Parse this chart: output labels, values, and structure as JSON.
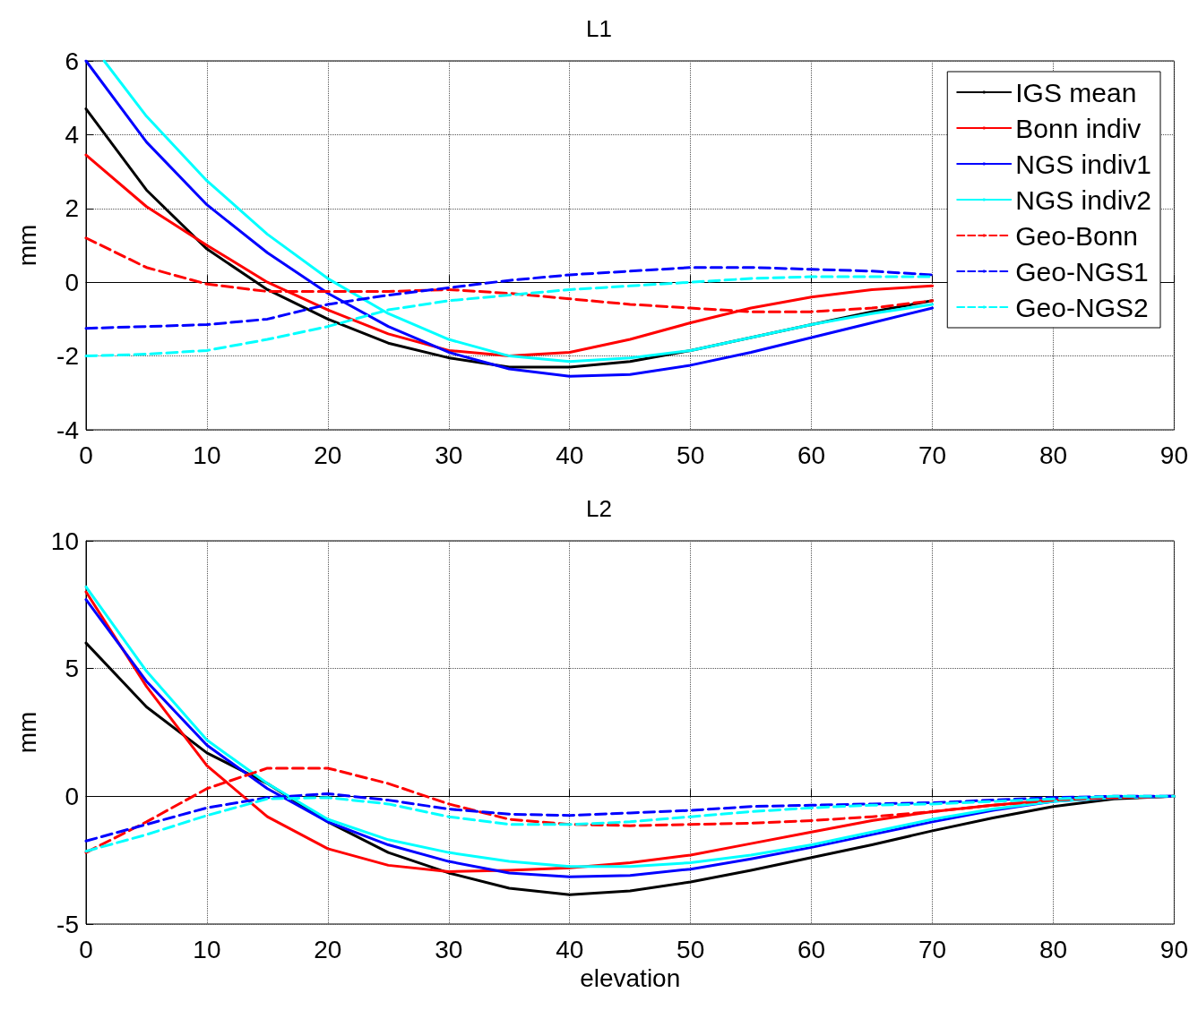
{
  "chart_data": [
    {
      "type": "line",
      "title": "L1",
      "ylabel": "mm",
      "x": [
        0,
        5,
        10,
        15,
        20,
        25,
        30,
        35,
        40,
        45,
        50,
        55,
        60,
        65,
        70
      ],
      "xlim": [
        0,
        90
      ],
      "xticks": [
        0,
        10,
        20,
        30,
        40,
        50,
        60,
        70,
        80,
        90
      ],
      "ylim": [
        -4,
        6
      ],
      "yticks": [
        -4,
        -2,
        0,
        2,
        4,
        6
      ],
      "grid": true,
      "legend": "top right",
      "marker": "none",
      "series": [
        {
          "name": "IGS mean",
          "color": "#000000",
          "line_style": "solid",
          "values": [
            4.7,
            2.5,
            0.9,
            -0.2,
            -1.0,
            -1.65,
            -2.05,
            -2.3,
            -2.3,
            -2.15,
            -1.85,
            -1.5,
            -1.15,
            -0.8,
            -0.5
          ]
        },
        {
          "name": "Bonn indiv",
          "color": "#ff0000",
          "line_style": "solid",
          "values": [
            3.45,
            2.05,
            1.0,
            0.0,
            -0.75,
            -1.4,
            -1.85,
            -2.0,
            -1.9,
            -1.55,
            -1.1,
            -0.7,
            -0.4,
            -0.2,
            -0.1
          ]
        },
        {
          "name": "NGS indiv1",
          "color": "#0000ff",
          "line_style": "solid",
          "values": [
            6.0,
            3.8,
            2.1,
            0.8,
            -0.3,
            -1.2,
            -1.9,
            -2.35,
            -2.55,
            -2.5,
            -2.25,
            -1.9,
            -1.5,
            -1.1,
            -0.7
          ]
        },
        {
          "name": "NGS indiv2",
          "color": "#00ffff",
          "line_style": "solid",
          "x": [
            1.5,
            5,
            10,
            15,
            20,
            25,
            30,
            35,
            40,
            45,
            50,
            55,
            60,
            65,
            70
          ],
          "values": [
            6.0,
            4.5,
            2.75,
            1.3,
            0.1,
            -0.85,
            -1.55,
            -2.0,
            -2.15,
            -2.05,
            -1.85,
            -1.5,
            -1.15,
            -0.85,
            -0.6
          ]
        },
        {
          "name": "Geo-Bonn",
          "color": "#ff0000",
          "line_style": "dashed",
          "values": [
            1.2,
            0.4,
            -0.05,
            -0.25,
            -0.25,
            -0.25,
            -0.2,
            -0.3,
            -0.45,
            -0.6,
            -0.7,
            -0.8,
            -0.8,
            -0.7,
            -0.5
          ]
        },
        {
          "name": "Geo-NGS1",
          "color": "#0000ff",
          "line_style": "dashed",
          "values": [
            -1.25,
            -1.2,
            -1.15,
            -1.0,
            -0.6,
            -0.35,
            -0.15,
            0.05,
            0.2,
            0.3,
            0.4,
            0.4,
            0.35,
            0.3,
            0.2
          ]
        },
        {
          "name": "Geo-NGS2",
          "color": "#00ffff",
          "line_style": "dashed",
          "values": [
            -2.0,
            -1.95,
            -1.85,
            -1.55,
            -1.2,
            -0.75,
            -0.5,
            -0.35,
            -0.2,
            -0.1,
            0.0,
            0.1,
            0.15,
            0.15,
            0.15
          ]
        }
      ]
    },
    {
      "type": "line",
      "title": "L2",
      "xlabel": "elevation",
      "ylabel": "mm",
      "x": [
        0,
        5,
        10,
        15,
        20,
        25,
        30,
        35,
        40,
        45,
        50,
        55,
        60,
        65,
        70,
        75,
        80,
        85,
        90
      ],
      "xlim": [
        0,
        90
      ],
      "xticks": [
        0,
        10,
        20,
        30,
        40,
        50,
        60,
        70,
        80,
        90
      ],
      "ylim": [
        -5,
        10
      ],
      "yticks": [
        -5,
        0,
        5,
        10
      ],
      "grid": true,
      "marker": "none",
      "series": [
        {
          "color": "#000000",
          "line_style": "solid",
          "values": [
            6.0,
            3.5,
            1.7,
            0.5,
            -1.0,
            -2.2,
            -3.0,
            -3.6,
            -3.85,
            -3.7,
            -3.35,
            -2.9,
            -2.4,
            -1.9,
            -1.35,
            -0.85,
            -0.4,
            -0.1,
            0
          ]
        },
        {
          "color": "#ff0000",
          "line_style": "solid",
          "values": [
            8.0,
            4.3,
            1.2,
            -0.8,
            -2.05,
            -2.7,
            -2.95,
            -2.9,
            -2.8,
            -2.6,
            -2.3,
            -1.85,
            -1.4,
            -0.95,
            -0.6,
            -0.35,
            -0.15,
            -0.05,
            0
          ]
        },
        {
          "color": "#0000ff",
          "line_style": "solid",
          "values": [
            7.7,
            4.5,
            2.0,
            0.3,
            -1.0,
            -1.9,
            -2.55,
            -3.0,
            -3.15,
            -3.1,
            -2.85,
            -2.45,
            -2.0,
            -1.5,
            -1.0,
            -0.55,
            -0.2,
            -0.05,
            0
          ]
        },
        {
          "color": "#00ffff",
          "line_style": "solid",
          "values": [
            8.2,
            4.9,
            2.2,
            0.5,
            -0.9,
            -1.7,
            -2.2,
            -2.55,
            -2.75,
            -2.75,
            -2.6,
            -2.3,
            -1.9,
            -1.4,
            -0.9,
            -0.5,
            -0.2,
            -0.05,
            0
          ]
        },
        {
          "color": "#ff0000",
          "line_style": "dashed",
          "values": [
            -2.2,
            -1.0,
            0.3,
            1.1,
            1.1,
            0.5,
            -0.3,
            -0.9,
            -1.1,
            -1.15,
            -1.1,
            -1.05,
            -0.95,
            -0.8,
            -0.6,
            -0.35,
            -0.15,
            -0.05,
            0
          ]
        },
        {
          "color": "#0000ff",
          "line_style": "dashed",
          "values": [
            -1.75,
            -1.1,
            -0.45,
            -0.05,
            0.1,
            -0.15,
            -0.5,
            -0.7,
            -0.75,
            -0.65,
            -0.55,
            -0.4,
            -0.35,
            -0.3,
            -0.25,
            -0.15,
            -0.05,
            0,
            0
          ]
        },
        {
          "color": "#00ffff",
          "line_style": "dashed",
          "values": [
            -2.15,
            -1.5,
            -0.75,
            -0.1,
            -0.05,
            -0.3,
            -0.8,
            -1.1,
            -1.1,
            -1.0,
            -0.8,
            -0.6,
            -0.45,
            -0.35,
            -0.3,
            -0.2,
            -0.1,
            0,
            0
          ]
        }
      ]
    }
  ]
}
